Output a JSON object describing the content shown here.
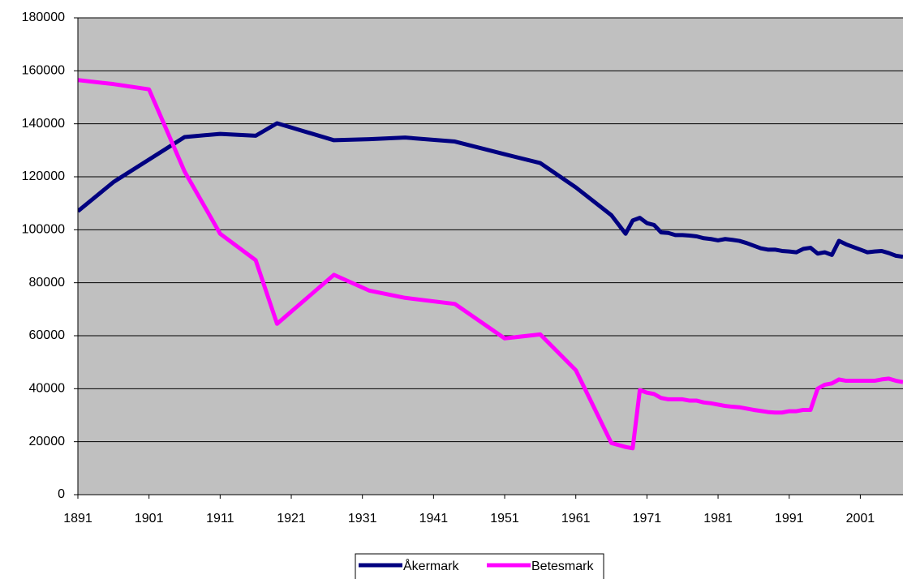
{
  "chart_data": {
    "type": "line",
    "x": [
      1891,
      1896,
      1901,
      1906,
      1911,
      1916,
      1919,
      1927,
      1932,
      1937,
      1944,
      1951,
      1956,
      1961,
      1966,
      1968,
      1969,
      1970,
      1971,
      1972,
      1973,
      1974,
      1975,
      1976,
      1977,
      1978,
      1979,
      1980,
      1981,
      1982,
      1983,
      1984,
      1985,
      1986,
      1987,
      1988,
      1989,
      1990,
      1991,
      1992,
      1993,
      1994,
      1995,
      1996,
      1997,
      1998,
      1999,
      2000,
      2001,
      2002,
      2003,
      2004,
      2005,
      2006,
      2007
    ],
    "series": [
      {
        "name": "Åkermark",
        "color": "#000080",
        "values": [
          107000,
          118000,
          126500,
          135000,
          136200,
          135500,
          140200,
          133800,
          134200,
          134800,
          133300,
          128500,
          125200,
          116000,
          105500,
          98500,
          103500,
          104500,
          102500,
          101800,
          99000,
          98800,
          98000,
          98000,
          97800,
          97500,
          96800,
          96500,
          96000,
          96500,
          96200,
          95800,
          95000,
          94000,
          93000,
          92500,
          92500,
          92000,
          91800,
          91500,
          92800,
          93200,
          91000,
          91500,
          90500,
          95800,
          94500,
          93500,
          92500,
          91500,
          91800,
          92000,
          91200,
          90200,
          89800
        ]
      },
      {
        "name": "Betesmark",
        "color": "#ff00ff",
        "values": [
          156500,
          155000,
          153000,
          122000,
          98500,
          88500,
          64500,
          83000,
          77000,
          74300,
          72000,
          59000,
          60500,
          47000,
          19500,
          18000,
          17500,
          39500,
          38500,
          38000,
          36500,
          36000,
          36000,
          36000,
          35500,
          35500,
          34800,
          34500,
          34000,
          33500,
          33200,
          33000,
          32500,
          32000,
          31600,
          31200,
          31000,
          31000,
          31500,
          31500,
          32000,
          32000,
          40000,
          41500,
          42000,
          43500,
          43000,
          43000,
          43000,
          43000,
          43000,
          43500,
          43800,
          43000,
          42500
        ]
      }
    ],
    "xlim": [
      1891,
      2007
    ],
    "xticks": [
      1891,
      1901,
      1911,
      1921,
      1931,
      1941,
      1951,
      1961,
      1971,
      1981,
      1991,
      2001
    ],
    "ylim": [
      0,
      180000
    ],
    "yticks": [
      0,
      20000,
      40000,
      60000,
      80000,
      100000,
      120000,
      140000,
      160000,
      180000
    ],
    "grid": true,
    "legend": "bottom"
  }
}
